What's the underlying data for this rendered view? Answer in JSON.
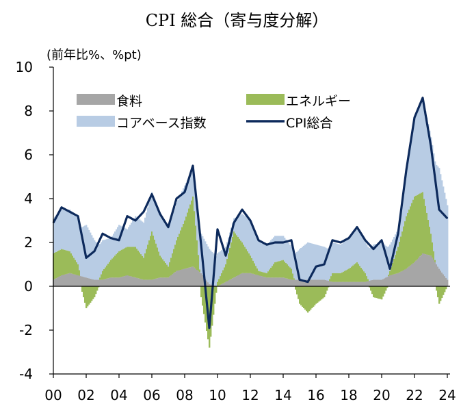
{
  "chart_data": {
    "type": "area",
    "title": "CPI 総合（寄与度分解）",
    "ylabel": "(前年比%、%pt)",
    "xlabel": "",
    "ylim": [
      -4,
      10
    ],
    "yticks": [
      "-4",
      "-2",
      "0",
      "2",
      "4",
      "6",
      "8",
      "10"
    ],
    "xlim": [
      2000,
      2024
    ],
    "xticks": [
      {
        "year": 2000,
        "label": "00"
      },
      {
        "year": 2002,
        "label": "02"
      },
      {
        "year": 2004,
        "label": "04"
      },
      {
        "year": 2006,
        "label": "06"
      },
      {
        "year": 2008,
        "label": "08"
      },
      {
        "year": 2010,
        "label": "10"
      },
      {
        "year": 2012,
        "label": "12"
      },
      {
        "year": 2014,
        "label": "14"
      },
      {
        "year": 2016,
        "label": "16"
      },
      {
        "year": 2018,
        "label": "18"
      },
      {
        "year": 2020,
        "label": "20"
      },
      {
        "year": 2022,
        "label": "22"
      },
      {
        "year": 2024,
        "label": "24"
      }
    ],
    "legend": [
      {
        "name": "食料",
        "kind": "area",
        "color": "#a6a6a6"
      },
      {
        "name": "エネルギー",
        "kind": "area",
        "color": "#9bbb59"
      },
      {
        "name": "コアベース指数",
        "kind": "area",
        "color": "#b8cce4"
      },
      {
        "name": "CPI総合",
        "kind": "line",
        "color": "#0d2a5c"
      }
    ],
    "x": [
      2000.0,
      2000.5,
      2001.0,
      2001.5,
      2002.0,
      2002.5,
      2003.0,
      2003.5,
      2004.0,
      2004.5,
      2005.0,
      2005.5,
      2006.0,
      2006.5,
      2007.0,
      2007.5,
      2008.0,
      2008.5,
      2009.0,
      2009.5,
      2010.0,
      2010.5,
      2011.0,
      2011.5,
      2012.0,
      2012.5,
      2013.0,
      2013.5,
      2014.0,
      2014.5,
      2015.0,
      2015.5,
      2016.0,
      2016.5,
      2017.0,
      2017.5,
      2018.0,
      2018.5,
      2019.0,
      2019.5,
      2020.0,
      2020.5,
      2021.0,
      2021.5,
      2022.0,
      2022.5,
      2023.0,
      2023.5,
      2024.0
    ],
    "series": [
      {
        "name": "食料",
        "values": [
          0.3,
          0.5,
          0.6,
          0.5,
          0.4,
          0.3,
          0.3,
          0.4,
          0.4,
          0.5,
          0.4,
          0.3,
          0.3,
          0.4,
          0.4,
          0.7,
          0.8,
          0.9,
          0.6,
          0.1,
          0.0,
          0.2,
          0.4,
          0.6,
          0.6,
          0.5,
          0.4,
          0.4,
          0.4,
          0.3,
          0.3,
          0.3,
          0.3,
          0.3,
          0.2,
          0.2,
          0.2,
          0.2,
          0.2,
          0.3,
          0.3,
          0.5,
          0.6,
          0.8,
          1.1,
          1.5,
          1.4,
          0.8,
          0.3
        ]
      },
      {
        "name": "エネルギー",
        "values": [
          1.2,
          1.2,
          1.0,
          0.5,
          -1.0,
          -0.5,
          0.4,
          0.8,
          1.2,
          1.3,
          1.4,
          1.0,
          2.2,
          1.0,
          0.5,
          1.4,
          2.2,
          3.2,
          -0.5,
          -2.8,
          0.2,
          0.8,
          2.1,
          1.4,
          0.8,
          0.2,
          0.2,
          0.7,
          0.8,
          0.5,
          -0.8,
          -1.2,
          -0.8,
          -0.5,
          0.4,
          0.4,
          0.6,
          0.9,
          0.4,
          -0.5,
          -0.6,
          0.2,
          1.2,
          2.4,
          3.0,
          2.8,
          1.0,
          -0.8,
          0.0
        ]
      },
      {
        "name": "コアベース指数",
        "values": [
          1.6,
          1.8,
          1.9,
          2.1,
          2.4,
          1.8,
          1.4,
          1.0,
          1.2,
          0.8,
          1.4,
          1.6,
          1.8,
          1.9,
          1.8,
          1.7,
          1.6,
          1.2,
          1.8,
          1.6,
          1.3,
          0.8,
          0.6,
          1.3,
          1.6,
          1.4,
          1.3,
          1.2,
          1.1,
          1.0,
          1.4,
          1.7,
          1.6,
          1.5,
          1.4,
          1.3,
          1.4,
          1.6,
          1.4,
          1.6,
          1.7,
          1.2,
          0.8,
          2.1,
          3.5,
          4.3,
          4.4,
          4.6,
          3.4
        ]
      },
      {
        "name": "CPI総合",
        "values": [
          2.9,
          3.6,
          3.4,
          3.2,
          1.3,
          1.6,
          2.4,
          2.2,
          2.1,
          3.2,
          3.0,
          3.4,
          4.2,
          3.3,
          2.7,
          4.0,
          4.3,
          5.5,
          1.9,
          -1.9,
          2.6,
          1.4,
          2.9,
          3.5,
          3.0,
          2.1,
          1.9,
          2.0,
          2.0,
          2.1,
          0.3,
          0.2,
          0.9,
          1.0,
          2.1,
          2.0,
          2.2,
          2.7,
          2.1,
          1.7,
          2.1,
          0.8,
          2.4,
          5.3,
          7.7,
          8.6,
          6.4,
          3.5,
          3.1
        ]
      }
    ]
  }
}
